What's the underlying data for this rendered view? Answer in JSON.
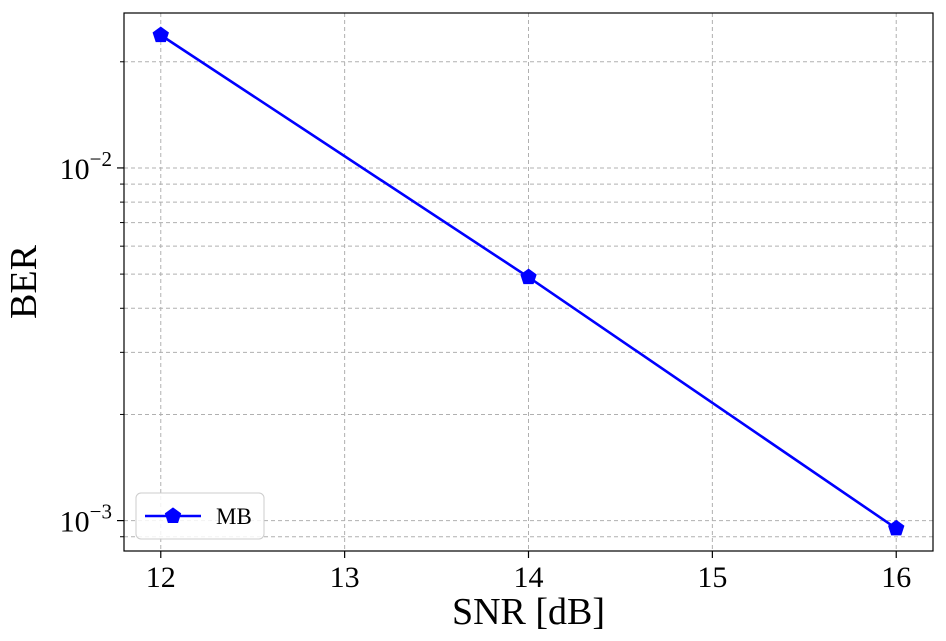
{
  "chart_data": {
    "type": "line",
    "title": "",
    "xlabel": "SNR [dB]",
    "ylabel": "BER",
    "xlim": [
      11.8,
      16.2
    ],
    "ylim": [
      0.00082,
      0.0275
    ],
    "yscale": "log",
    "grid": "on (major and minor, dashed)",
    "legend_position": "lower-left",
    "x_ticks": [
      {
        "value": 12,
        "label": "12"
      },
      {
        "value": 13,
        "label": "13"
      },
      {
        "value": 14,
        "label": "14"
      },
      {
        "value": 15,
        "label": "15"
      },
      {
        "value": 16,
        "label": "16"
      }
    ],
    "y_ticks": [
      {
        "value": 0.001,
        "base": "10",
        "exp": "−3"
      },
      {
        "value": 0.01,
        "base": "10",
        "exp": "−2"
      }
    ],
    "y_minor_ticks": [
      0.0009,
      0.002,
      0.003,
      0.004,
      0.005,
      0.006,
      0.007,
      0.008,
      0.009,
      0.02
    ],
    "series": [
      {
        "name": "MB",
        "color": "#0000ff",
        "marker": "pentagon",
        "x": [
          12,
          14,
          16
        ],
        "y": [
          0.0238,
          0.0049,
          0.00095
        ]
      }
    ]
  }
}
